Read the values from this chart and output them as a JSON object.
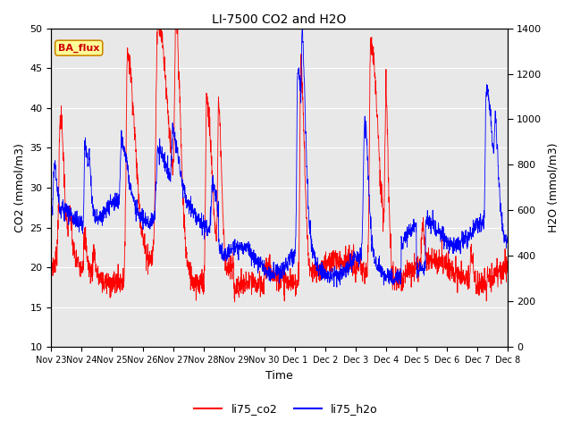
{
  "title": "LI-7500 CO2 and H2O",
  "xlabel": "Time",
  "ylabel_left": "CO2 (mmol/m3)",
  "ylabel_right": "H2O (mmol/m3)",
  "ylim_left": [
    10,
    50
  ],
  "ylim_right": [
    0,
    1400
  ],
  "yticks_left": [
    10,
    15,
    20,
    25,
    30,
    35,
    40,
    45,
    50
  ],
  "yticks_right": [
    0,
    200,
    400,
    600,
    800,
    1000,
    1200,
    1400
  ],
  "color_co2": "#ff0000",
  "color_h2o": "#0000ff",
  "legend_label_co2": "li75_co2",
  "legend_label_h2o": "li75_h2o",
  "annotation_text": "BA_flux",
  "annotation_bg": "#ffff99",
  "annotation_border": "#cc8800",
  "background_color": "#e8e8e8",
  "n_points": 2160,
  "x_tick_labels": [
    "Nov 23",
    "Nov 24",
    "Nov 25",
    "Nov 26",
    "Nov 27",
    "Nov 28",
    "Nov 29",
    "Nov 30",
    "Dec 1",
    "Dec 2",
    "Dec 3",
    "Dec 4",
    "Dec 5",
    "Dec 6",
    "Dec 7",
    "Dec 8"
  ]
}
